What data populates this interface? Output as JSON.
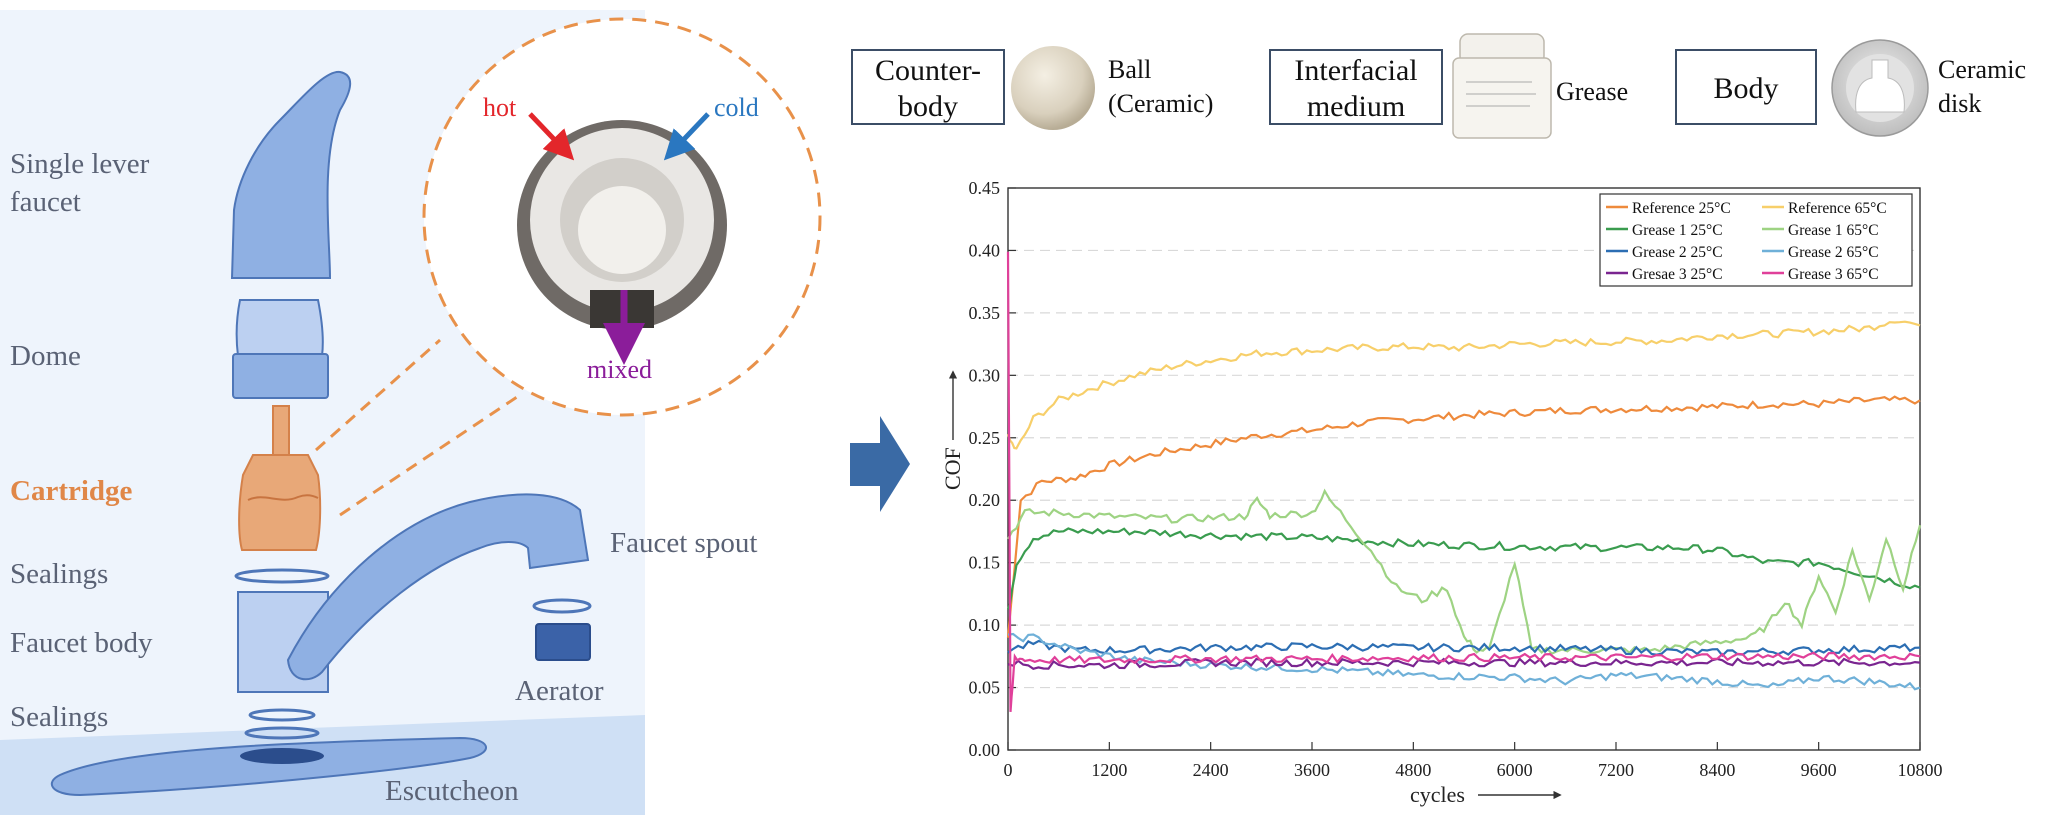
{
  "faucet": {
    "labels": {
      "lever": [
        "Single lever",
        "faucet"
      ],
      "dome": "Dome",
      "cartridge": "Cartridge",
      "sealings_top": "Sealings",
      "body": "Faucet body",
      "sealings_bottom": "Sealings",
      "spout": "Faucet spout",
      "aerator": "Aerator",
      "escutcheon": "Escutcheon"
    },
    "inset": {
      "hot": "hot",
      "cold": "cold",
      "mixed": "mixed"
    },
    "colors": {
      "part": "#8fb0e3",
      "cartridge": "#e8a878",
      "label": "#5a6275",
      "hot": "#e3262b",
      "cold": "#2a77c0",
      "mixed": "#8b1d9a"
    }
  },
  "tribology": {
    "counter_body": {
      "title": [
        "Counter-",
        "body"
      ],
      "item": [
        "Ball",
        "(Ceramic)"
      ]
    },
    "interfacial_medium": {
      "title": [
        "Interfacial",
        "medium"
      ],
      "item": "Grease"
    },
    "body": {
      "title": "Body",
      "item": [
        "Ceramic",
        "disk"
      ]
    }
  },
  "chart_data": {
    "type": "line",
    "xlabel": "cycles",
    "ylabel": "COF",
    "xlim": [
      0,
      10800
    ],
    "ylim": [
      0,
      0.45
    ],
    "xticks": [
      "0",
      "1200",
      "2400",
      "3600",
      "4800",
      "6000",
      "7200",
      "8400",
      "9600",
      "10800"
    ],
    "yticks": [
      "0.00",
      "0.05",
      "0.10",
      "0.15",
      "0.20",
      "0.25",
      "0.30",
      "0.35",
      "0.40",
      "0.45"
    ],
    "grid": true,
    "legend_position": "top-right",
    "series": [
      {
        "name": "Reference 25°C",
        "color": "#ee8a3c",
        "x": [
          0,
          150,
          400,
          800,
          1200,
          1800,
          2400,
          3000,
          3600,
          4200,
          4800,
          5400,
          6000,
          6600,
          7200,
          7800,
          8400,
          9000,
          9600,
          10200,
          10800
        ],
        "y": [
          0.09,
          0.2,
          0.215,
          0.218,
          0.228,
          0.238,
          0.245,
          0.252,
          0.256,
          0.262,
          0.265,
          0.268,
          0.27,
          0.272,
          0.273,
          0.274,
          0.275,
          0.277,
          0.277,
          0.28,
          0.28
        ]
      },
      {
        "name": "Reference 65°C",
        "color": "#f7cf6a",
        "x": [
          0,
          100,
          300,
          600,
          1000,
          1500,
          2000,
          2400,
          3000,
          3600,
          4200,
          4800,
          5400,
          6000,
          6600,
          7200,
          7800,
          8400,
          9000,
          9600,
          10200,
          10500,
          10800
        ],
        "y": [
          0.25,
          0.24,
          0.265,
          0.28,
          0.29,
          0.3,
          0.308,
          0.312,
          0.318,
          0.32,
          0.322,
          0.323,
          0.322,
          0.325,
          0.326,
          0.327,
          0.328,
          0.332,
          0.333,
          0.335,
          0.338,
          0.345,
          0.34
        ]
      },
      {
        "name": "Grease 1 25°C",
        "color": "#3a9c4f",
        "x": [
          0,
          100,
          300,
          600,
          1000,
          1500,
          2400,
          3600,
          4800,
          6000,
          7200,
          8000,
          8400,
          9000,
          9600,
          10200,
          10800
        ],
        "y": [
          0.11,
          0.15,
          0.17,
          0.175,
          0.175,
          0.175,
          0.172,
          0.17,
          0.165,
          0.163,
          0.162,
          0.162,
          0.16,
          0.15,
          0.15,
          0.14,
          0.13
        ]
      },
      {
        "name": "Grease 1 65°C",
        "color": "#9ed383",
        "x": [
          0,
          200,
          600,
          1200,
          2000,
          2800,
          2950,
          3100,
          3600,
          3750,
          4000,
          4300,
          4600,
          4900,
          5200,
          5400,
          5550,
          5700,
          6000,
          6200,
          6500,
          7000,
          7600,
          8200,
          8800,
          9000,
          9200,
          9400,
          9600,
          9800,
          10000,
          10200,
          10400,
          10600,
          10800
        ],
        "y": [
          0.17,
          0.19,
          0.19,
          0.187,
          0.185,
          0.187,
          0.2,
          0.188,
          0.19,
          0.205,
          0.185,
          0.16,
          0.13,
          0.12,
          0.13,
          0.09,
          0.08,
          0.08,
          0.15,
          0.08,
          0.08,
          0.08,
          0.08,
          0.085,
          0.09,
          0.1,
          0.12,
          0.1,
          0.14,
          0.11,
          0.16,
          0.12,
          0.17,
          0.13,
          0.18
        ]
      },
      {
        "name": "Grease 2 25°C",
        "color": "#2c6eb3",
        "x": [
          0,
          300,
          800,
          1500,
          2400,
          3600,
          4800,
          6000,
          7200,
          8400,
          9600,
          10800
        ],
        "y": [
          0.08,
          0.085,
          0.08,
          0.08,
          0.082,
          0.083,
          0.082,
          0.082,
          0.08,
          0.078,
          0.08,
          0.082
        ]
      },
      {
        "name": "Grease 2 65°C",
        "color": "#6fb0d8",
        "x": [
          0,
          300,
          800,
          1500,
          2400,
          3600,
          4800,
          6000,
          6600,
          7200,
          7800,
          8400,
          9000,
          9600,
          10200,
          10800
        ],
        "y": [
          0.09,
          0.09,
          0.08,
          0.072,
          0.068,
          0.065,
          0.06,
          0.058,
          0.055,
          0.06,
          0.058,
          0.055,
          0.05,
          0.058,
          0.055,
          0.05
        ]
      },
      {
        "name": "Gresae 3 25°C",
        "color": "#7a2590",
        "x": [
          0,
          300,
          1200,
          2400,
          3600,
          4800,
          6000,
          7200,
          8400,
          9600,
          10800
        ],
        "y": [
          0.07,
          0.068,
          0.068,
          0.07,
          0.07,
          0.07,
          0.07,
          0.07,
          0.07,
          0.07,
          0.07
        ]
      },
      {
        "name": "Grease 3 65°C",
        "color": "#e0409a",
        "x": [
          0,
          30,
          80,
          200,
          1200,
          2400,
          3600,
          4800,
          6000,
          7200,
          8400,
          9600,
          10800
        ],
        "y": [
          0.4,
          0.03,
          0.075,
          0.072,
          0.072,
          0.073,
          0.073,
          0.074,
          0.074,
          0.074,
          0.075,
          0.075,
          0.075
        ]
      }
    ]
  }
}
